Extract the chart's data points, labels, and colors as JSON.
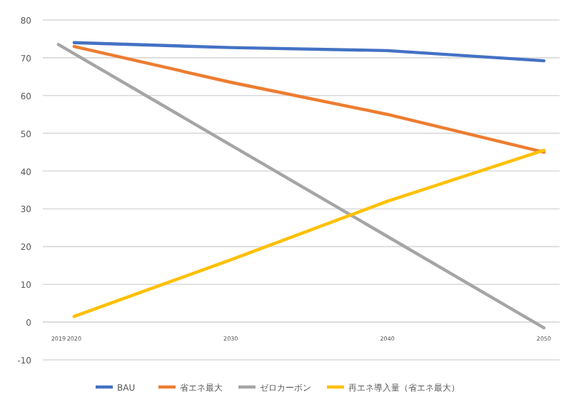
{
  "chart_data": {
    "type": "line",
    "xlim": [
      2018,
      2051
    ],
    "xticks": [
      2019,
      2020,
      2030,
      2040,
      2050
    ],
    "ylim": [
      -10,
      80
    ],
    "yticks": [
      -10,
      0,
      10,
      20,
      30,
      40,
      50,
      60,
      70,
      80
    ],
    "grid": "y",
    "legend": "bottom",
    "marker": "none",
    "series": [
      {
        "name": "BAU",
        "color": "#4472c4",
        "x": [
          2020,
          2030,
          2040,
          2050
        ],
        "values": [
          74,
          72.7,
          71.9,
          69.2
        ]
      },
      {
        "name": "省エネ最大",
        "color": "#ed7d31",
        "x": [
          2020,
          2030,
          2040,
          2050
        ],
        "values": [
          73,
          63.5,
          55,
          45
        ]
      },
      {
        "name": "ゼロカーボン",
        "color": "#a5a5a5",
        "x": [
          2019,
          2050
        ],
        "values": [
          73.5,
          -1.5
        ]
      },
      {
        "name": "再エネ導入量（省エネ最大）",
        "color": "#ffc000",
        "x": [
          2020,
          2030,
          2040,
          2050
        ],
        "values": [
          1.5,
          16.5,
          32,
          45.5
        ]
      }
    ]
  }
}
